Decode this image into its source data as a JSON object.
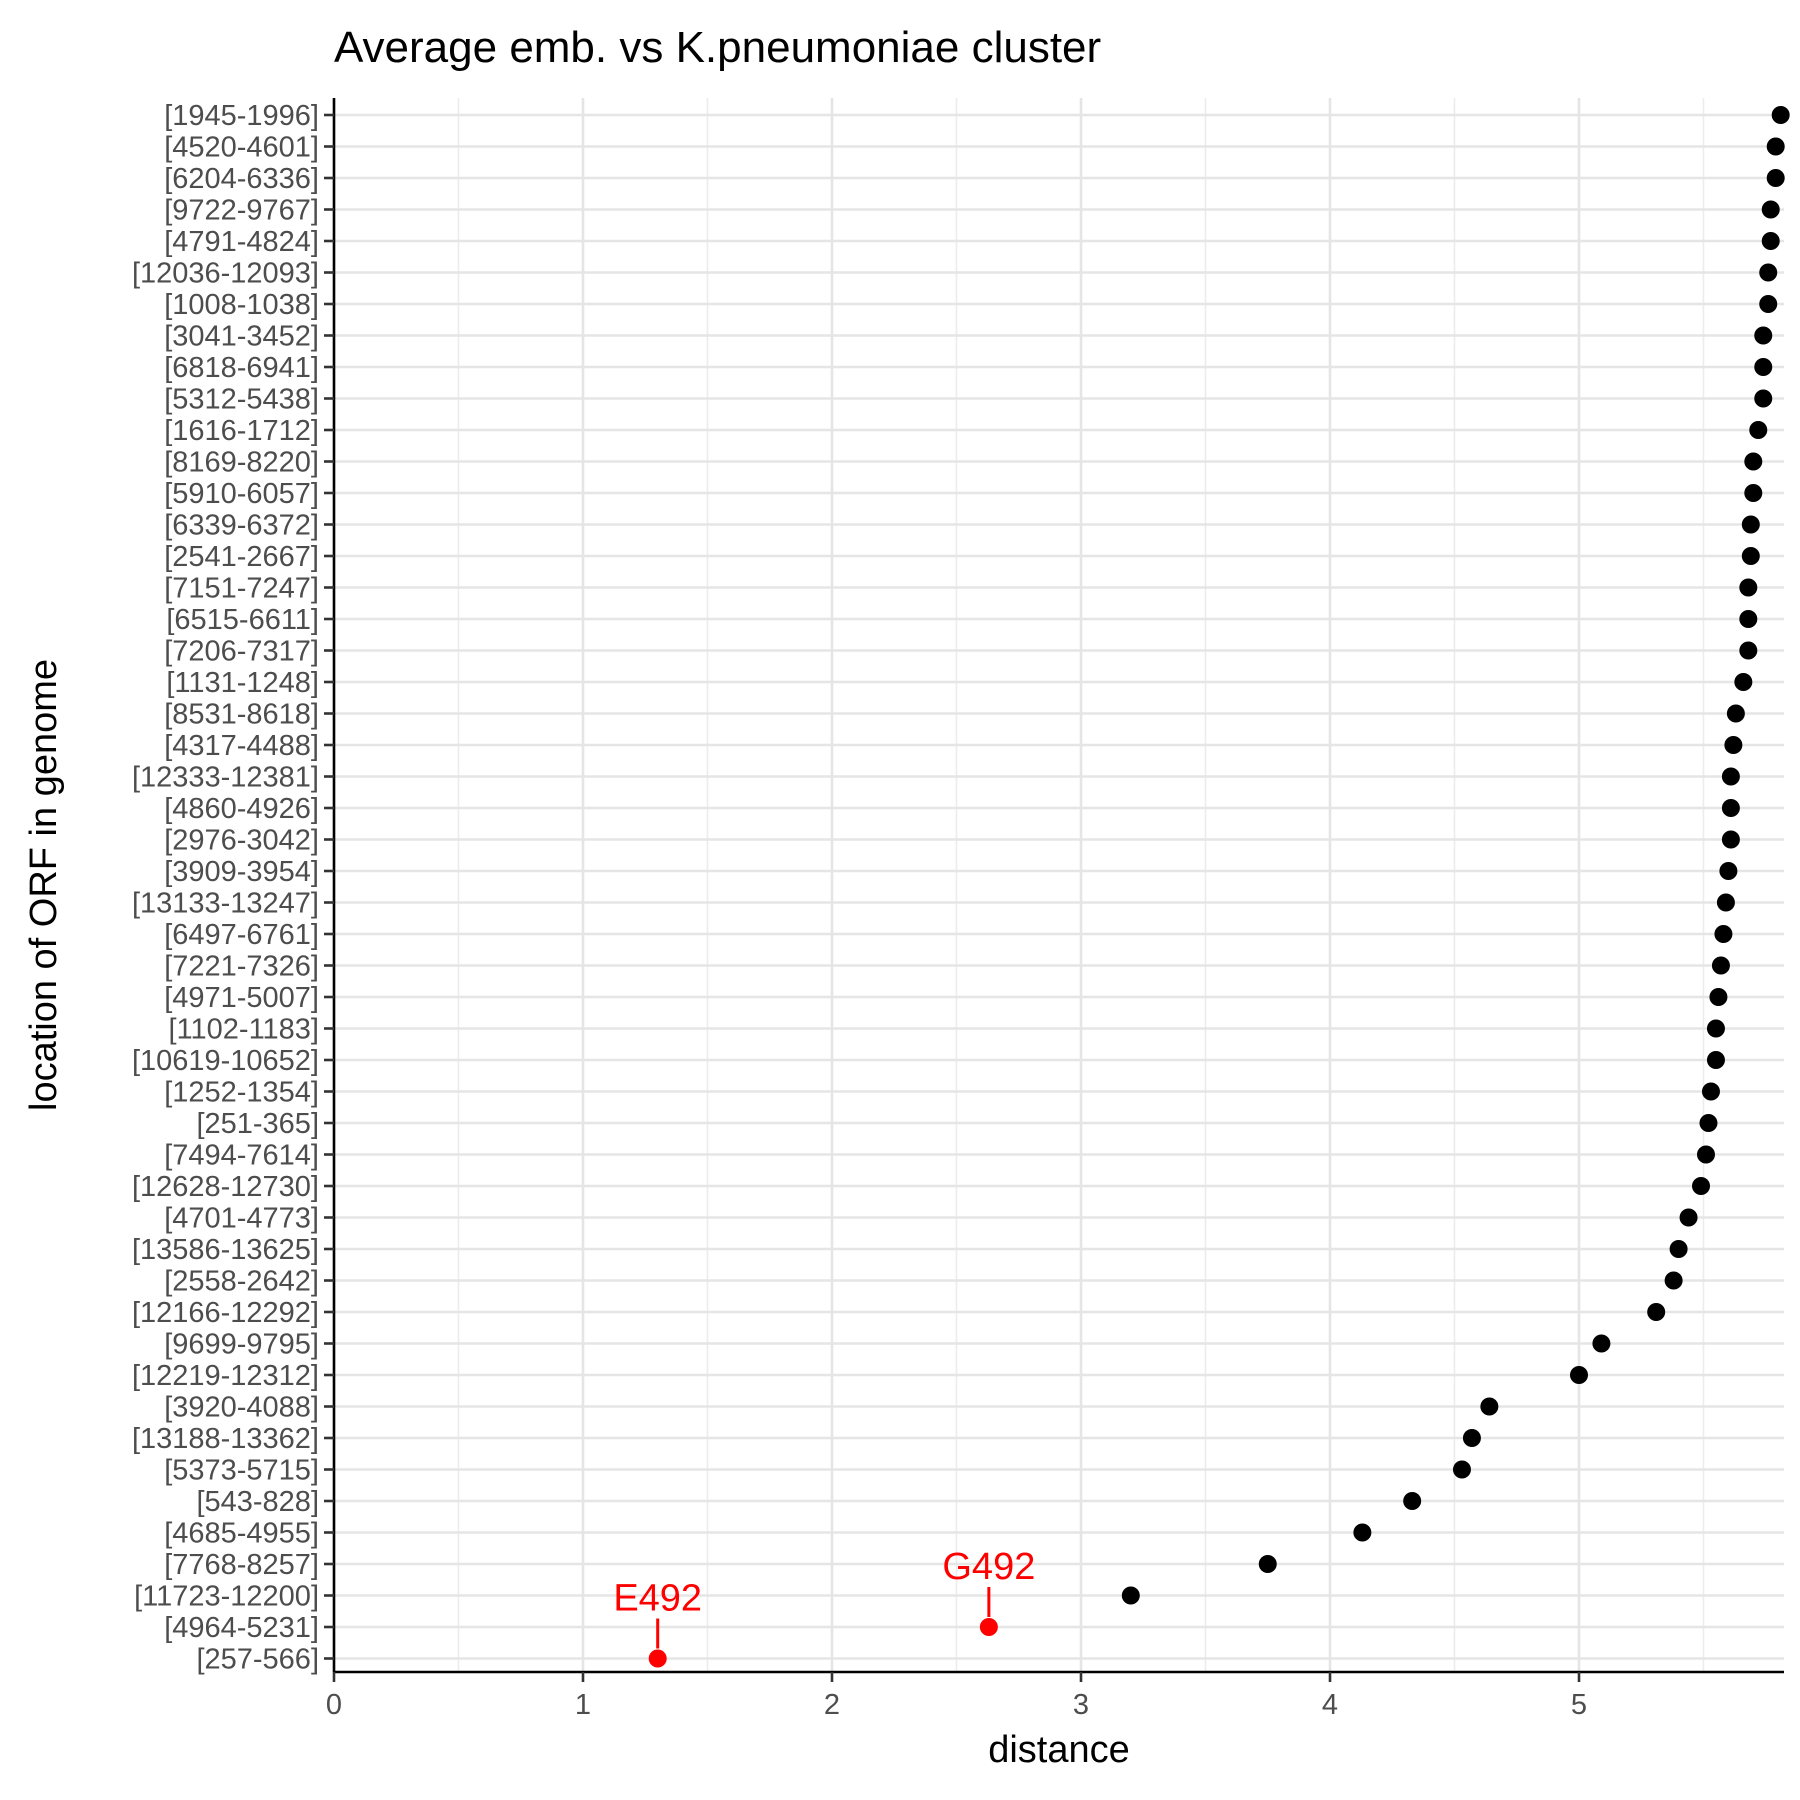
{
  "chart_data": {
    "type": "scatter",
    "title": "Average emb. vs K.pneumoniae cluster",
    "xlabel": "distance",
    "ylabel": "location of ORF in genome",
    "xlim": [
      0,
      5.8
    ],
    "x_ticks": [
      "0",
      "1",
      "2",
      "3",
      "4",
      "5"
    ],
    "grid": true,
    "point_color": "#000000",
    "highlight_color": "#ff0000",
    "points": [
      {
        "label": "[1945-1996]",
        "x": 5.81
      },
      {
        "label": "[4520-4601]",
        "x": 5.79
      },
      {
        "label": "[6204-6336]",
        "x": 5.79
      },
      {
        "label": "[9722-9767]",
        "x": 5.77
      },
      {
        "label": "[4791-4824]",
        "x": 5.77
      },
      {
        "label": "[12036-12093]",
        "x": 5.76
      },
      {
        "label": "[1008-1038]",
        "x": 5.76
      },
      {
        "label": "[3041-3452]",
        "x": 5.74
      },
      {
        "label": "[6818-6941]",
        "x": 5.74
      },
      {
        "label": "[5312-5438]",
        "x": 5.74
      },
      {
        "label": "[1616-1712]",
        "x": 5.72
      },
      {
        "label": "[8169-8220]",
        "x": 5.7
      },
      {
        "label": "[5910-6057]",
        "x": 5.7
      },
      {
        "label": "[6339-6372]",
        "x": 5.69
      },
      {
        "label": "[2541-2667]",
        "x": 5.69
      },
      {
        "label": "[7151-7247]",
        "x": 5.68
      },
      {
        "label": "[6515-6611]",
        "x": 5.68
      },
      {
        "label": "[7206-7317]",
        "x": 5.68
      },
      {
        "label": "[1131-1248]",
        "x": 5.66
      },
      {
        "label": "[8531-8618]",
        "x": 5.63
      },
      {
        "label": "[4317-4488]",
        "x": 5.62
      },
      {
        "label": "[12333-12381]",
        "x": 5.61
      },
      {
        "label": "[4860-4926]",
        "x": 5.61
      },
      {
        "label": "[2976-3042]",
        "x": 5.61
      },
      {
        "label": "[3909-3954]",
        "x": 5.6
      },
      {
        "label": "[13133-13247]",
        "x": 5.59
      },
      {
        "label": "[6497-6761]",
        "x": 5.58
      },
      {
        "label": "[7221-7326]",
        "x": 5.57
      },
      {
        "label": "[4971-5007]",
        "x": 5.56
      },
      {
        "label": "[1102-1183]",
        "x": 5.55
      },
      {
        "label": "[10619-10652]",
        "x": 5.55
      },
      {
        "label": "[1252-1354]",
        "x": 5.53
      },
      {
        "label": "[251-365]",
        "x": 5.52
      },
      {
        "label": "[7494-7614]",
        "x": 5.51
      },
      {
        "label": "[12628-12730]",
        "x": 5.49
      },
      {
        "label": "[4701-4773]",
        "x": 5.44
      },
      {
        "label": "[13586-13625]",
        "x": 5.4
      },
      {
        "label": "[2558-2642]",
        "x": 5.38
      },
      {
        "label": "[12166-12292]",
        "x": 5.31
      },
      {
        "label": "[9699-9795]",
        "x": 5.09
      },
      {
        "label": "[12219-12312]",
        "x": 5.0
      },
      {
        "label": "[3920-4088]",
        "x": 4.64
      },
      {
        "label": "[13188-13362]",
        "x": 4.57
      },
      {
        "label": "[5373-5715]",
        "x": 4.53
      },
      {
        "label": "[543-828]",
        "x": 4.33
      },
      {
        "label": "[4685-4955]",
        "x": 4.13
      },
      {
        "label": "[7768-8257]",
        "x": 3.75
      },
      {
        "label": "[11723-12200]",
        "x": 3.2
      },
      {
        "label": "[4964-5231]",
        "x": 2.63,
        "highlight": true,
        "annotation": "G492"
      },
      {
        "label": "[257-566]",
        "x": 1.3,
        "highlight": true,
        "annotation": "E492"
      }
    ]
  }
}
